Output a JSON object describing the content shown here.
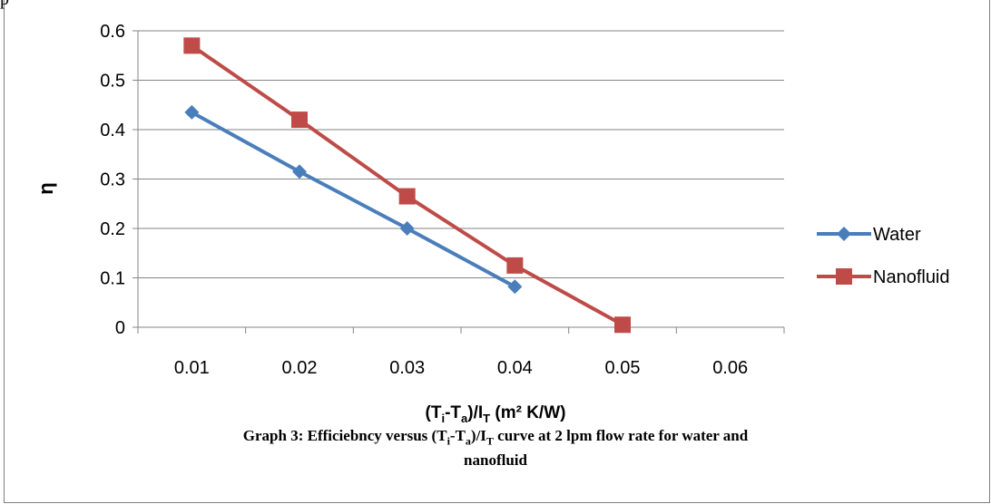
{
  "page_fragment_top": "p",
  "chart_data": {
    "type": "line",
    "x": [
      0.01,
      0.02,
      0.03,
      0.04,
      0.05
    ],
    "x_tick_labels": [
      "0.01",
      "0.02",
      "0.03",
      "0.04",
      "0.05",
      "0.06"
    ],
    "y_tick_labels": [
      "0",
      "0.1",
      "0.2",
      "0.3",
      "0.4",
      "0.5",
      "0.6"
    ],
    "ylim": [
      0,
      0.6
    ],
    "ylabel": "η",
    "xlabel_parts": {
      "open": "(T",
      "i": "i",
      "minus": "-T",
      "a": "a",
      "close_div": ")/I",
      "T": "T",
      "units": " (m² K/W)"
    },
    "grid": "horizontal",
    "legend_position": "right",
    "series": [
      {
        "name": "Water",
        "color": "#4a7ebb",
        "marker": "diamond",
        "x": [
          0.01,
          0.02,
          0.03,
          0.04
        ],
        "values": [
          0.435,
          0.315,
          0.2,
          0.082
        ]
      },
      {
        "name": "Nanofluid",
        "color": "#be4b48",
        "marker": "square",
        "x": [
          0.01,
          0.02,
          0.03,
          0.04,
          0.05
        ],
        "values": [
          0.57,
          0.42,
          0.265,
          0.125,
          0.005
        ]
      }
    ]
  },
  "caption": {
    "prefix": "Graph 3: Efficiebncy versus (T",
    "i": "i",
    "mid": "-T",
    "a": "a",
    "div": ")/I",
    "T": "T",
    "suffix": " curve at 2 lpm flow rate for water and",
    "line2": "nanofluid"
  }
}
